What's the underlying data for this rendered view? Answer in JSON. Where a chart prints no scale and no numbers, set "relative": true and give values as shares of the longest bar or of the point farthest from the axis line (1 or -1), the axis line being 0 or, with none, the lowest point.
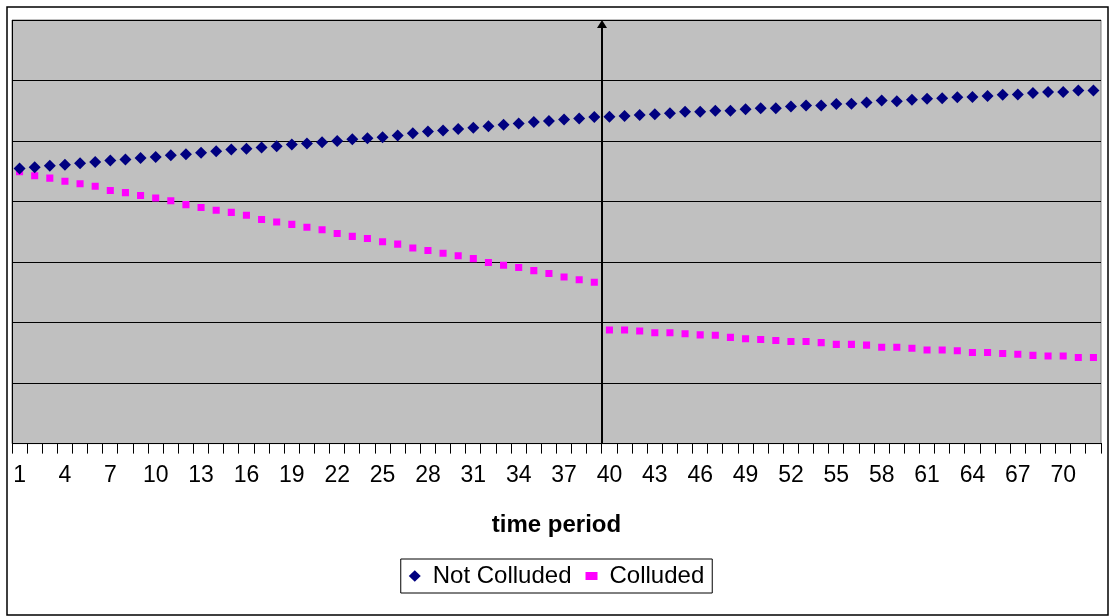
{
  "chart_data": {
    "type": "scatter",
    "xlabel": "time period",
    "relative": true,
    "grid": "y",
    "legend": "bottom",
    "categories": [
      "1",
      null,
      null,
      "4",
      null,
      null,
      "7",
      null,
      null,
      "10",
      null,
      null,
      "13",
      null,
      null,
      "16",
      null,
      null,
      "19",
      null,
      null,
      "22",
      null,
      null,
      "25",
      null,
      null,
      "28",
      null,
      null,
      "31",
      null,
      null,
      "34",
      null,
      null,
      "37",
      null,
      null,
      "40",
      null,
      null,
      "43",
      null,
      null,
      "46",
      null,
      null,
      "49",
      null,
      null,
      "52",
      null,
      null,
      "55",
      null,
      null,
      "58",
      null,
      null,
      "61",
      null,
      null,
      "64",
      null,
      null,
      "67",
      null,
      null,
      "70",
      null,
      null
    ],
    "series": [
      {
        "name": "Not Colluded",
        "color": "#000080",
        "marker": "diamond",
        "values": [
          0.779,
          0.783,
          0.787,
          0.79,
          0.794,
          0.798,
          0.802,
          0.805,
          0.809,
          0.812,
          0.817,
          0.82,
          0.824,
          0.828,
          0.833,
          0.835,
          0.839,
          0.842,
          0.847,
          0.85,
          0.854,
          0.857,
          0.862,
          0.865,
          0.868,
          0.873,
          0.879,
          0.884,
          0.887,
          0.891,
          0.895,
          0.899,
          0.903,
          0.907,
          0.911,
          0.914,
          0.918,
          0.921,
          0.925,
          0.926,
          0.928,
          0.931,
          0.933,
          0.936,
          0.94,
          0.94,
          0.943,
          0.943,
          0.947,
          0.95,
          0.95,
          0.955,
          0.958,
          0.958,
          0.962,
          0.963,
          0.966,
          0.972,
          0.97,
          0.974,
          0.977,
          0.978,
          0.981,
          0.982,
          0.985,
          0.988,
          0.989,
          0.993,
          0.996,
          0.996,
          1.0,
          1.0
        ]
      },
      {
        "name": "Colluded",
        "color": "#ff00ff",
        "marker": "square",
        "values": [
          0.77,
          0.759,
          0.752,
          0.743,
          0.736,
          0.729,
          0.717,
          0.711,
          0.703,
          0.696,
          0.688,
          0.677,
          0.669,
          0.661,
          0.655,
          0.647,
          0.635,
          0.628,
          0.621,
          0.613,
          0.606,
          0.595,
          0.587,
          0.581,
          0.572,
          0.565,
          0.554,
          0.547,
          0.539,
          0.532,
          0.524,
          0.513,
          0.505,
          0.499,
          0.49,
          0.482,
          0.472,
          0.464,
          0.457,
          0.322,
          0.322,
          0.319,
          0.314,
          0.314,
          0.311,
          0.308,
          0.307,
          0.301,
          0.297,
          0.295,
          0.292,
          0.289,
          0.289,
          0.286,
          0.281,
          0.281,
          0.279,
          0.273,
          0.273,
          0.27,
          0.265,
          0.265,
          0.263,
          0.258,
          0.258,
          0.255,
          0.253,
          0.25,
          0.248,
          0.248,
          0.244,
          0.244
        ]
      }
    ]
  }
}
